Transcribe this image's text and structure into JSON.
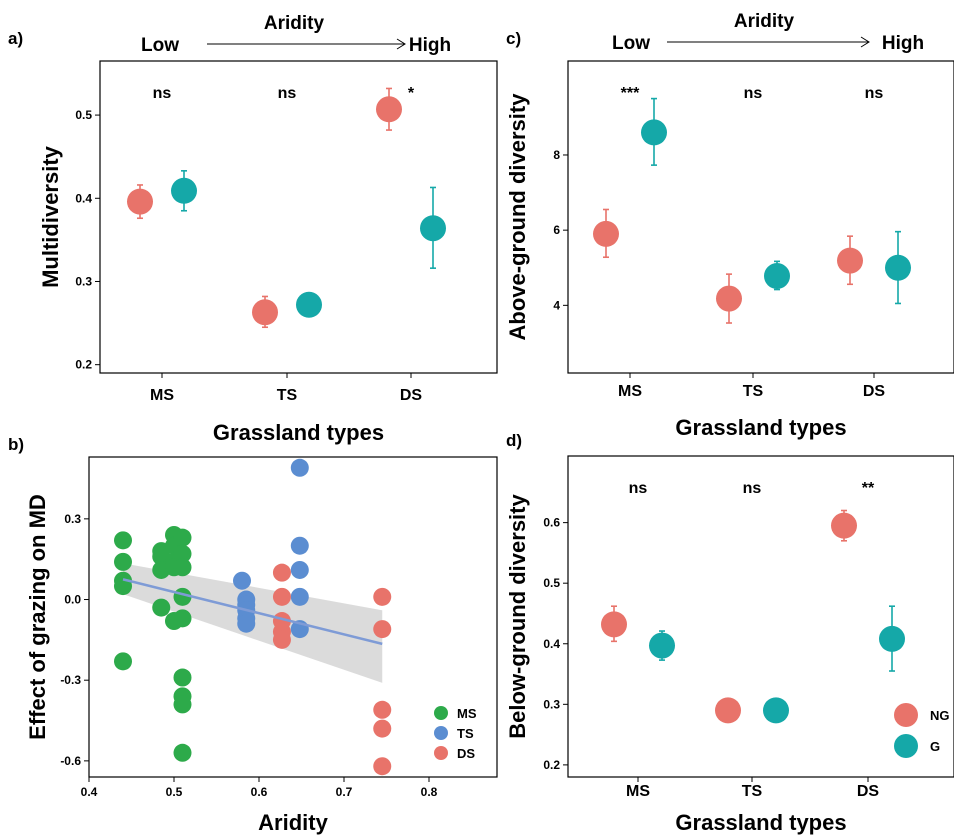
{
  "colors": {
    "NG": "#E8736A",
    "G": "#15A8A8",
    "MS": "#2DAA4A",
    "TS": "#5B8DD1",
    "DS": "#E8736A",
    "regression_line": "#7E9BD6",
    "ribbon": "#BDBDBD"
  },
  "chart_data": [
    {
      "panel": "a)",
      "type": "scatter",
      "ylabel": "Multidiversity",
      "xlabel": "Grassland types",
      "categories": [
        "MS",
        "TS",
        "DS"
      ],
      "ylim": [
        0.19,
        0.565
      ],
      "yticks": [
        "0.2",
        "0.3",
        "0.4",
        "0.5"
      ],
      "aridity": {
        "title": "Aridity",
        "low": "Low",
        "high": "High"
      },
      "significance": [
        "ns",
        "ns",
        "*"
      ],
      "series": [
        {
          "key": "NG",
          "values": [
            0.396,
            0.263,
            0.507
          ],
          "err_low": [
            0.376,
            0.245,
            0.482
          ],
          "err_high": [
            0.416,
            0.282,
            0.532
          ]
        },
        {
          "key": "G",
          "values": [
            0.409,
            0.272,
            0.364
          ],
          "err_low": [
            0.385,
            0.272,
            0.316
          ],
          "err_high": [
            0.433,
            0.272,
            0.413
          ]
        }
      ]
    },
    {
      "panel": "b)",
      "type": "scatter",
      "ylabel": "Effect of grazing on MD",
      "xlabel": "Aridity",
      "xlim": [
        0.4,
        0.88
      ],
      "ylim": [
        -0.66,
        0.53
      ],
      "xticks": [
        "0.4",
        "0.5",
        "0.6",
        "0.7",
        "0.8"
      ],
      "yticks": [
        "-0.6",
        "-0.3",
        "0.0",
        "0.3"
      ],
      "legend": [
        "MS",
        "TS",
        "DS"
      ],
      "regression": {
        "x": [
          0.44,
          0.745
        ],
        "y": [
          0.075,
          -0.165
        ],
        "ci_low_start": 0.02,
        "ci_high_start": 0.135,
        "ci_low_end": -0.31,
        "ci_high_end": -0.04
      },
      "points": {
        "MS": [
          [
            0.44,
            0.22
          ],
          [
            0.44,
            0.14
          ],
          [
            0.44,
            0.07
          ],
          [
            0.44,
            0.05
          ],
          [
            0.44,
            -0.23
          ],
          [
            0.485,
            0.18
          ],
          [
            0.485,
            0.16
          ],
          [
            0.485,
            0.11
          ],
          [
            0.485,
            -0.03
          ],
          [
            0.5,
            0.24
          ],
          [
            0.5,
            0.2
          ],
          [
            0.5,
            0.14
          ],
          [
            0.5,
            0.12
          ],
          [
            0.5,
            -0.08
          ],
          [
            0.51,
            0.23
          ],
          [
            0.51,
            0.17
          ],
          [
            0.51,
            0.12
          ],
          [
            0.51,
            0.01
          ],
          [
            0.51,
            -0.07
          ],
          [
            0.51,
            -0.29
          ],
          [
            0.51,
            -0.36
          ],
          [
            0.51,
            -0.39
          ],
          [
            0.51,
            -0.57
          ]
        ],
        "TS": [
          [
            0.58,
            0.07
          ],
          [
            0.585,
            0.0
          ],
          [
            0.585,
            -0.02
          ],
          [
            0.585,
            -0.04
          ],
          [
            0.585,
            -0.07
          ],
          [
            0.585,
            -0.09
          ],
          [
            0.648,
            0.49
          ],
          [
            0.648,
            0.2
          ],
          [
            0.648,
            0.11
          ],
          [
            0.648,
            0.01
          ],
          [
            0.648,
            -0.11
          ]
        ],
        "DS": [
          [
            0.627,
            0.1
          ],
          [
            0.627,
            0.01
          ],
          [
            0.627,
            -0.08
          ],
          [
            0.627,
            -0.12
          ],
          [
            0.627,
            -0.15
          ],
          [
            0.745,
            0.01
          ],
          [
            0.745,
            -0.11
          ],
          [
            0.745,
            -0.41
          ],
          [
            0.745,
            -0.48
          ],
          [
            0.745,
            -0.62
          ]
        ]
      }
    },
    {
      "panel": "c)",
      "type": "scatter",
      "ylabel": "Above-ground diversity",
      "xlabel": "Grassland types",
      "categories": [
        "MS",
        "TS",
        "DS"
      ],
      "ylim": [
        2.2,
        10.5
      ],
      "yticks": [
        "4",
        "6",
        "8"
      ],
      "aridity": {
        "title": "Aridity",
        "low": "Low",
        "high": "High"
      },
      "significance": [
        "***",
        "ns",
        "ns"
      ],
      "series": [
        {
          "key": "NG",
          "values": [
            5.9,
            4.18,
            5.19
          ],
          "err_low": [
            5.28,
            3.53,
            4.56
          ],
          "err_high": [
            6.55,
            4.83,
            5.84
          ]
        },
        {
          "key": "G",
          "values": [
            8.6,
            4.78,
            5.0
          ],
          "err_low": [
            7.73,
            4.42,
            4.05
          ],
          "err_high": [
            9.5,
            5.17,
            5.96
          ]
        }
      ]
    },
    {
      "panel": "d)",
      "type": "scatter",
      "ylabel": "Below-ground diversity",
      "xlabel": "Grassland types",
      "categories": [
        "MS",
        "TS",
        "DS"
      ],
      "ylim": [
        0.18,
        0.71
      ],
      "yticks": [
        "0.2",
        "0.3",
        "0.4",
        "0.5",
        "0.6"
      ],
      "significance": [
        "ns",
        "ns",
        "**"
      ],
      "legend": [
        "NG",
        "G"
      ],
      "series": [
        {
          "key": "NG",
          "values": [
            0.432,
            0.29,
            0.595
          ],
          "err_low": [
            0.404,
            0.29,
            0.57
          ],
          "err_high": [
            0.462,
            0.29,
            0.62
          ]
        },
        {
          "key": "G",
          "values": [
            0.397,
            0.29,
            0.408
          ],
          "err_low": [
            0.373,
            0.29,
            0.355
          ],
          "err_high": [
            0.421,
            0.29,
            0.462
          ]
        }
      ]
    }
  ]
}
